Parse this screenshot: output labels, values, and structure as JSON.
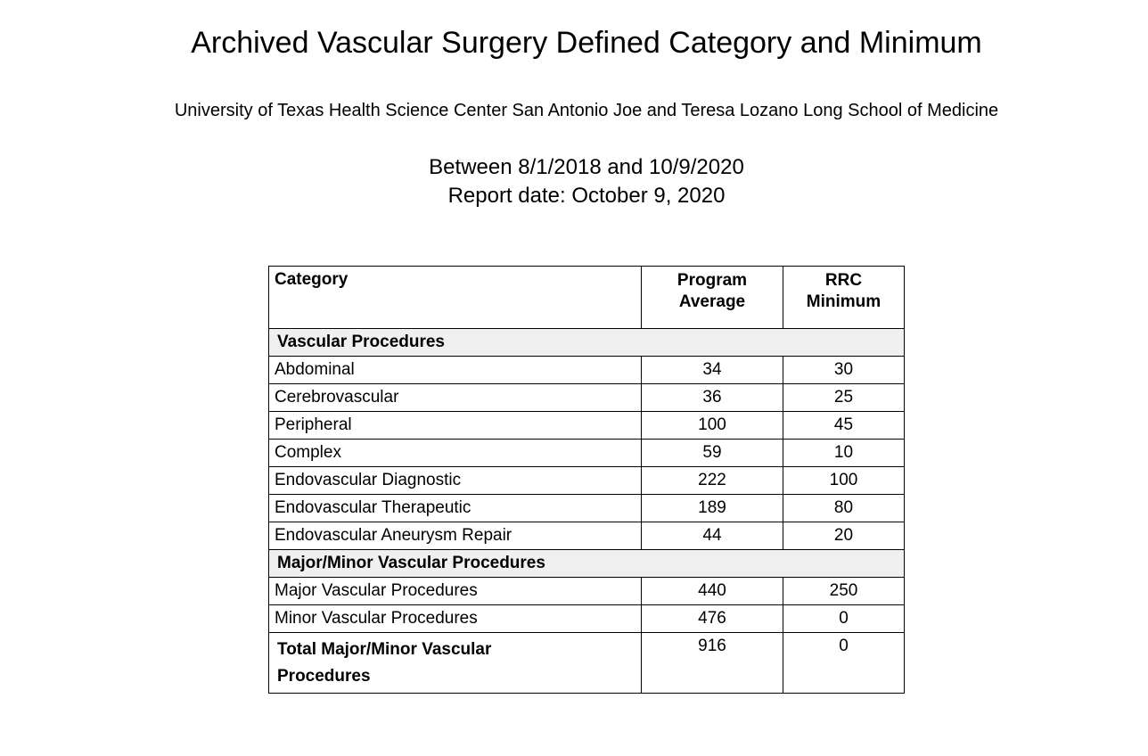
{
  "document": {
    "title": "Archived Vascular Surgery Defined Category and Minimum",
    "subtitle": "University of Texas Health Science Center San Antonio Joe and Teresa Lozano Long School of Medicine",
    "date_range": "Between 8/1/2018 and 10/9/2020",
    "report_date": "Report date: October 9, 2020"
  },
  "table": {
    "header": {
      "category": "Category",
      "program_average": "Program\nAverage",
      "rrc_minimum": "RRC\nMinimum"
    },
    "rows": [
      {
        "type": "section",
        "label": "Vascular Procedures",
        "program_average": "",
        "rrc_minimum": ""
      },
      {
        "type": "data",
        "label": "Abdominal",
        "program_average": "34",
        "rrc_minimum": "30"
      },
      {
        "type": "data",
        "label": "Cerebrovascular",
        "program_average": "36",
        "rrc_minimum": "25"
      },
      {
        "type": "data",
        "label": "Peripheral",
        "program_average": "100",
        "rrc_minimum": "45"
      },
      {
        "type": "data",
        "label": "Complex",
        "program_average": "59",
        "rrc_minimum": "10"
      },
      {
        "type": "data",
        "label": "Endovascular Diagnostic",
        "program_average": "222",
        "rrc_minimum": "100"
      },
      {
        "type": "data",
        "label": "Endovascular Therapeutic",
        "program_average": "189",
        "rrc_minimum": "80"
      },
      {
        "type": "data",
        "label": "Endovascular Aneurysm Repair",
        "program_average": "44",
        "rrc_minimum": "20"
      },
      {
        "type": "section",
        "label": "Major/Minor Vascular Procedures",
        "program_average": "",
        "rrc_minimum": ""
      },
      {
        "type": "data",
        "label": "Major Vascular Procedures",
        "program_average": "440",
        "rrc_minimum": "250"
      },
      {
        "type": "data",
        "label": "Minor Vascular Procedures",
        "program_average": "476",
        "rrc_minimum": "0"
      },
      {
        "type": "total",
        "label": "Total Major/Minor Vascular Procedures",
        "program_average": "916",
        "rrc_minimum": "0"
      }
    ],
    "colors": {
      "section_row_bg": "#f0f0f0",
      "border": "#000000",
      "text": "#000000",
      "page_bg": "#ffffff"
    }
  }
}
